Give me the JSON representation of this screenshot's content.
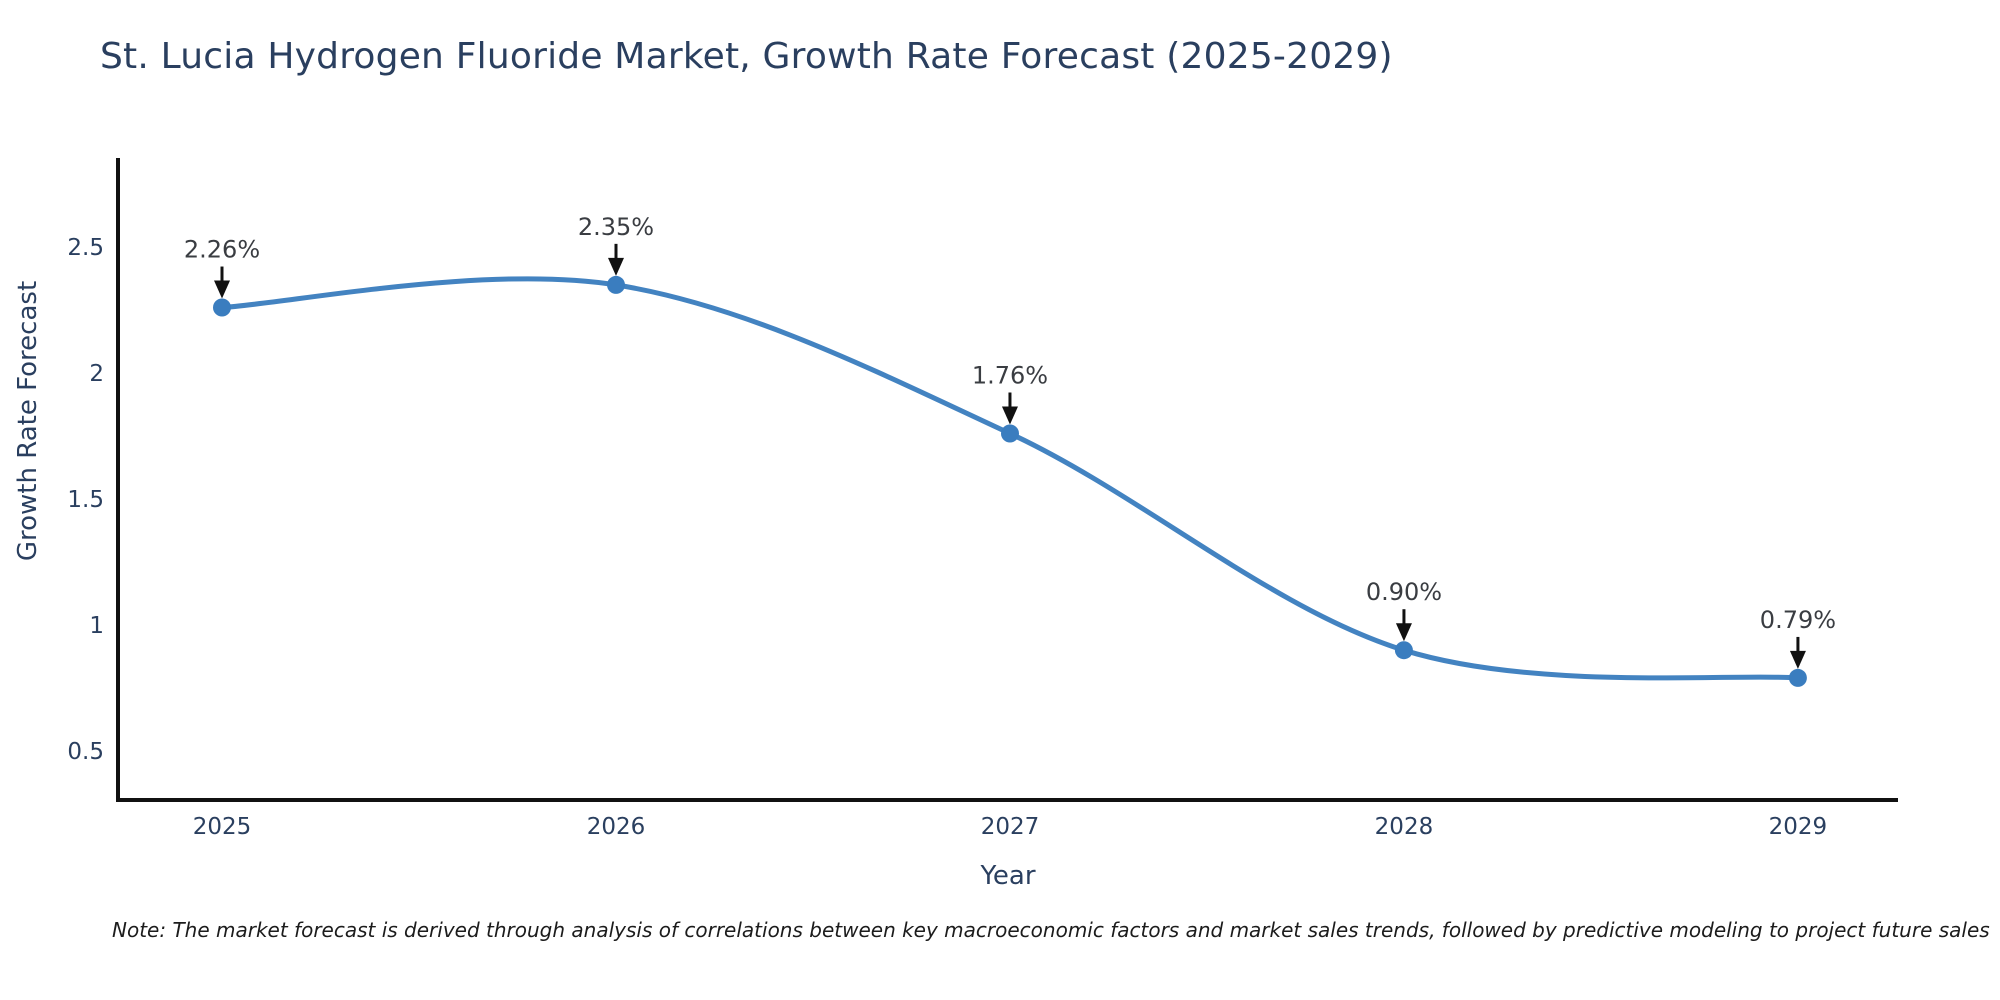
{
  "header": {
    "title": "St. Lucia Hydrogen Fluoride Market, Growth Rate Forecast (2025-2029)"
  },
  "footnote": {
    "text": "Note: The market forecast is derived through analysis of correlations between key macroeconomic factors and market sales trends, followed by predictive modeling to project future sales"
  },
  "chart_data": {
    "type": "line",
    "title": "St. Lucia Hydrogen Fluoride Market, Growth Rate Forecast (2025-2029)",
    "xlabel": "Year",
    "ylabel": "Growth Rate Forecast",
    "x": [
      2025,
      2026,
      2027,
      2028,
      2029
    ],
    "series": [
      {
        "name": "Growth Rate Forecast",
        "values": [
          2.26,
          2.35,
          1.76,
          0.9,
          0.79
        ]
      }
    ],
    "point_labels": [
      "2.26%",
      "2.35%",
      "1.76%",
      "0.90%",
      "0.79%"
    ],
    "xtick_labels": [
      "2025",
      "2026",
      "2027",
      "2028",
      "2029"
    ],
    "yticks": [
      0.5,
      1,
      1.5,
      2,
      2.5
    ],
    "ytick_labels": [
      "0.5",
      "1",
      "1.5",
      "2",
      "2.5"
    ],
    "xlim": [
      2024.736,
      2029.254
    ],
    "ylim": [
      0.3055,
      2.8455
    ],
    "line_shape": "spline",
    "grid": false,
    "legend": "none",
    "colors": {
      "line": "#4383c1",
      "marker": "#3a7dbf",
      "axis": "#111111",
      "tick_text": "#2a3f5f",
      "annotation_text": "#3a3d42",
      "arrow": "#111111",
      "title_text": "#2a3f5f"
    }
  }
}
